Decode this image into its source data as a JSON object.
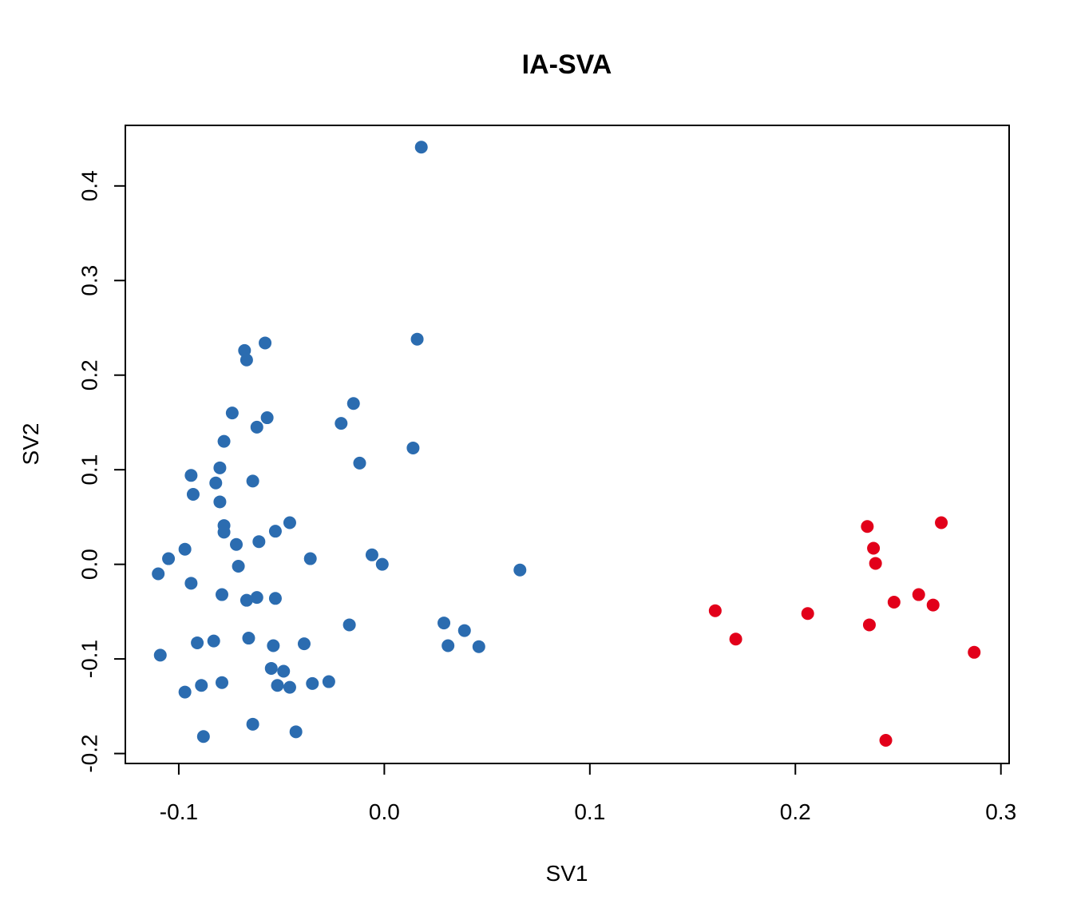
{
  "chart_data": {
    "type": "scatter",
    "title": "IA-SVA",
    "xlabel": "SV1",
    "ylabel": "SV2",
    "xlim": [
      -0.126,
      0.304
    ],
    "ylim": [
      -0.2105,
      0.464
    ],
    "xticks": [
      -0.1,
      0.0,
      0.1,
      0.2,
      0.3
    ],
    "xtick_labels": [
      "-0.1",
      "0.0",
      "0.1",
      "0.2",
      "0.3"
    ],
    "yticks": [
      -0.2,
      -0.1,
      0.0,
      0.1,
      0.2,
      0.3,
      0.4
    ],
    "ytick_labels": [
      "-0.2",
      "-0.1",
      "0.0",
      "0.1",
      "0.2",
      "0.3",
      "0.4"
    ],
    "grid": false,
    "series": [
      {
        "color": "#2b6cb0",
        "points": [
          [
            0.018,
            0.441
          ],
          [
            0.016,
            0.238
          ],
          [
            -0.058,
            0.234
          ],
          [
            -0.068,
            0.226
          ],
          [
            -0.067,
            0.216
          ],
          [
            -0.074,
            0.16
          ],
          [
            -0.057,
            0.155
          ],
          [
            -0.015,
            0.17
          ],
          [
            -0.021,
            0.149
          ],
          [
            -0.062,
            0.145
          ],
          [
            -0.078,
            0.13
          ],
          [
            0.014,
            0.123
          ],
          [
            -0.012,
            0.107
          ],
          [
            -0.08,
            0.102
          ],
          [
            -0.094,
            0.094
          ],
          [
            -0.082,
            0.086
          ],
          [
            -0.064,
            0.088
          ],
          [
            -0.093,
            0.074
          ],
          [
            -0.08,
            0.066
          ],
          [
            -0.078,
            0.041
          ],
          [
            -0.078,
            0.034
          ],
          [
            -0.046,
            0.044
          ],
          [
            -0.053,
            0.035
          ],
          [
            -0.061,
            0.024
          ],
          [
            -0.072,
            0.021
          ],
          [
            -0.097,
            0.016
          ],
          [
            -0.105,
            0.006
          ],
          [
            -0.036,
            0.006
          ],
          [
            -0.006,
            0.01
          ],
          [
            -0.001,
            0.0
          ],
          [
            -0.071,
            -0.002
          ],
          [
            -0.11,
            -0.01
          ],
          [
            -0.094,
            -0.02
          ],
          [
            0.066,
            -0.006
          ],
          [
            -0.079,
            -0.032
          ],
          [
            -0.062,
            -0.035
          ],
          [
            -0.067,
            -0.038
          ],
          [
            -0.053,
            -0.036
          ],
          [
            -0.017,
            -0.064
          ],
          [
            0.029,
            -0.062
          ],
          [
            0.039,
            -0.07
          ],
          [
            0.031,
            -0.086
          ],
          [
            0.046,
            -0.087
          ],
          [
            -0.066,
            -0.078
          ],
          [
            -0.083,
            -0.081
          ],
          [
            -0.091,
            -0.083
          ],
          [
            -0.054,
            -0.086
          ],
          [
            -0.039,
            -0.084
          ],
          [
            -0.109,
            -0.096
          ],
          [
            -0.055,
            -0.11
          ],
          [
            -0.049,
            -0.113
          ],
          [
            -0.027,
            -0.124
          ],
          [
            -0.035,
            -0.126
          ],
          [
            -0.079,
            -0.125
          ],
          [
            -0.089,
            -0.128
          ],
          [
            -0.052,
            -0.128
          ],
          [
            -0.046,
            -0.13
          ],
          [
            -0.097,
            -0.135
          ],
          [
            -0.064,
            -0.169
          ],
          [
            -0.043,
            -0.177
          ],
          [
            -0.088,
            -0.182
          ]
        ]
      },
      {
        "color": "#e2001a",
        "points": [
          [
            0.235,
            0.04
          ],
          [
            0.271,
            0.044
          ],
          [
            0.238,
            0.017
          ],
          [
            0.239,
            0.001
          ],
          [
            0.161,
            -0.049
          ],
          [
            0.206,
            -0.052
          ],
          [
            0.248,
            -0.04
          ],
          [
            0.26,
            -0.032
          ],
          [
            0.267,
            -0.043
          ],
          [
            0.236,
            -0.064
          ],
          [
            0.171,
            -0.079
          ],
          [
            0.287,
            -0.093
          ],
          [
            0.244,
            -0.186
          ]
        ]
      }
    ]
  }
}
